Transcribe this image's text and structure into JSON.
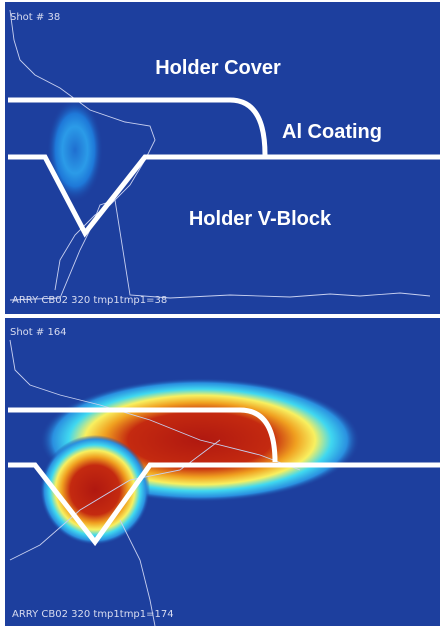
{
  "panels": [
    {
      "shot": "Shot # 38",
      "footer": "ARRY CB02 320 tmp1tmp1=38",
      "labels": {
        "cover": "Holder Cover",
        "coating": "Al Coating",
        "vblock": "Holder V-Block"
      }
    },
    {
      "shot": "Shot # 164",
      "footer": "ARRY CB02 320 tmp1tmp1=174"
    }
  ]
}
